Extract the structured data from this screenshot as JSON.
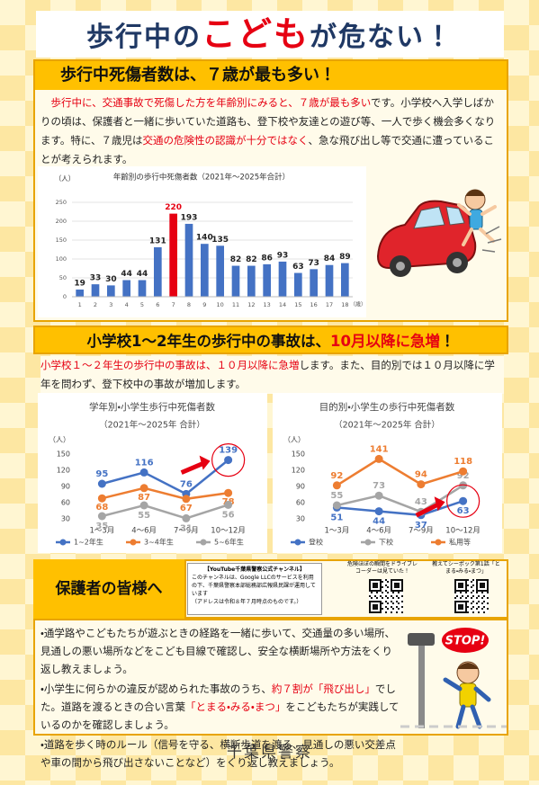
{
  "title": [
    {
      "text": "歩行中の",
      "color": "#1f3864"
    },
    {
      "text": "こども",
      "color": "#e60012"
    },
    {
      "text": "が危ない！",
      "color": "#1f3864"
    }
  ],
  "section1": {
    "heading": "歩行中死傷者数は、７歳が最も多い！",
    "paragraph": [
      {
        "text": "歩行中に、交通事故で死傷した方を年齢別にみると、７歳が最も多い",
        "color": "#e60012"
      },
      {
        "text": "です。小学校へ入学しばかりの頃は、保護者と一緒に歩いていた道路も、登下校や友達との遊び等、一人で歩く機会多くなります。特に、７歳児は",
        "color": "#222222"
      },
      {
        "text": "交通の危険性の認識が十分ではなく",
        "color": "#e60012"
      },
      {
        "text": "、急な飛び出し等で交通に遭っていることが考えられます。",
        "color": "#222222"
      }
    ]
  },
  "chart_data": [
    {
      "type": "bar",
      "title": "年齢別の歩行中死傷者数（2021年～2025年合計）",
      "y_unit": "（人）",
      "x_unit": "（歳）",
      "categories": [
        "1",
        "2",
        "3",
        "4",
        "5",
        "6",
        "7",
        "8",
        "9",
        "10",
        "11",
        "12",
        "13",
        "14",
        "15",
        "16",
        "17",
        "18"
      ],
      "values": [
        19,
        33,
        30,
        44,
        44,
        131,
        220,
        193,
        140,
        135,
        82,
        82,
        86,
        93,
        63,
        73,
        84,
        89
      ],
      "colors": [
        "#4472c4",
        "#4472c4",
        "#4472c4",
        "#4472c4",
        "#4472c4",
        "#4472c4",
        "#e60012",
        "#4472c4",
        "#4472c4",
        "#4472c4",
        "#4472c4",
        "#4472c4",
        "#4472c4",
        "#4472c4",
        "#4472c4",
        "#4472c4",
        "#4472c4",
        "#4472c4"
      ],
      "ylim": [
        0,
        250
      ],
      "yticks": [
        0,
        50,
        100,
        150,
        200,
        250
      ],
      "grid": true
    },
    {
      "type": "line",
      "title": "学年別・小学生歩行中死傷者数",
      "subtitle": "（2021年～2025年 合計）",
      "y_unit": "（人）",
      "categories": [
        "1～3月",
        "4～6月",
        "7～9月",
        "10～12月"
      ],
      "series": [
        {
          "name": "1~2年生",
          "color": "#4472c4",
          "values": [
            95,
            116,
            76,
            139
          ]
        },
        {
          "name": "3~4年生",
          "color": "#ed7d31",
          "values": [
            68,
            87,
            67,
            78
          ]
        },
        {
          "name": "5~6年生",
          "color": "#a5a5a5",
          "values": [
            35,
            55,
            31,
            56
          ]
        }
      ],
      "ylim": [
        30,
        150
      ],
      "yticks": [
        30,
        60,
        90,
        120,
        150
      ],
      "grid": false
    },
    {
      "type": "line",
      "title": "目的別・小学生の歩行中死傷者数",
      "subtitle": "（2021年～2025年 合計）",
      "y_unit": "（人）",
      "categories": [
        "1～3月",
        "4～6月",
        "7～9月",
        "10～12月"
      ],
      "series": [
        {
          "name": "登校",
          "color": "#4472c4",
          "values": [
            51,
            44,
            37,
            63
          ]
        },
        {
          "name": "下校",
          "color": "#a5a5a5",
          "values": [
            55,
            73,
            43,
            92
          ]
        },
        {
          "name": "私用等",
          "color": "#ed7d31",
          "values": [
            92,
            141,
            94,
            118
          ]
        }
      ],
      "ylim": [
        30,
        150
      ],
      "yticks": [
        30,
        60,
        90,
        120,
        150
      ],
      "grid": false
    }
  ],
  "section2": {
    "heading": [
      {
        "text": "小学校1～2年生の歩行中の事故は、",
        "color": "#111111"
      },
      {
        "text": "10月以降に急増",
        "color": "#e60012"
      },
      {
        "text": "！",
        "color": "#111111"
      }
    ],
    "paragraph": [
      {
        "text": "小学校１～２年生の歩行中の事故は、１０月以降に急増",
        "color": "#e60012"
      },
      {
        "text": "します。また、目的別では１０月以降に学年を問わず、登下校中の事故が増加します。",
        "color": "#222222"
      }
    ]
  },
  "section3": {
    "heading": "保護者の皆様へ",
    "youtube": {
      "title": "【YouTube千葉県警察公式チャンネル】",
      "body": "このチャンネルは、Google LLCのサービスを利用の下、千葉県警察本部総務部広報県民課が運用しています",
      "note": "（アドレスは令和８年７月時点のものです。）"
    },
    "qr_captions": [
      "危険ほぼの瞬間をドライブレコーダーは見ていた！",
      "教えてシーポック第1話「とまる・みる・まつ」"
    ],
    "bullets": [
      [
        {
          "text": "・通学路やこどもたちが遊ぶときの経路を一緒に歩いて、交通量の多い場所、見通しの悪い場所などをこども目線で確認し、安全な横断場所や方法をくり返し教えましょう。",
          "color": "#222222"
        }
      ],
      [
        {
          "text": "・小学生に何らかの違反が認められた事故のうち、",
          "color": "#222222"
        },
        {
          "text": "約７割が「飛び出し」",
          "color": "#e60012"
        },
        {
          "text": "でした。道路を渡るときの合い言葉",
          "color": "#222222"
        },
        {
          "text": "「とまる・みる・まつ」",
          "color": "#e60012"
        },
        {
          "text": "をこどもたちが実践しているのかを確認しましょう。",
          "color": "#222222"
        }
      ],
      [
        {
          "text": "・道路を歩く時のルール（信号を守る、横断歩道を渡る、見通しの悪い交差点や車の間から飛び出さないことなど）をくり返し教えましょう。",
          "color": "#222222"
        }
      ]
    ]
  },
  "illustration": {
    "stop_sign": "STOP!"
  },
  "footer": "千葉県警察"
}
